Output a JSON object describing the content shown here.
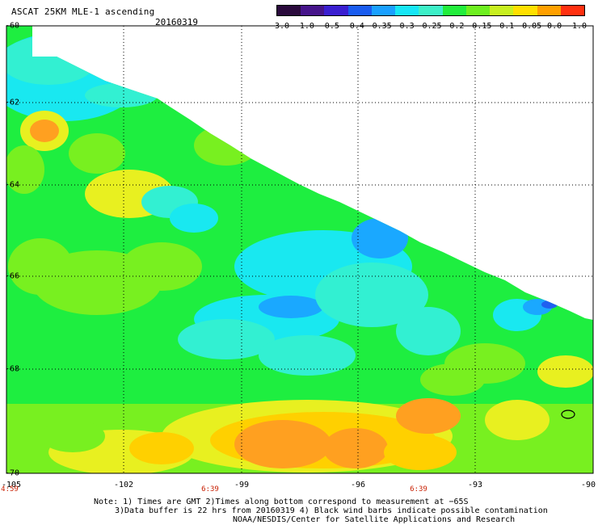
{
  "header": {
    "title": "ASCAT 25KM MLE-1 ascending",
    "date": "20160319"
  },
  "colorbar": {
    "labels": [
      "-3.0",
      "-1.0",
      "-0.5",
      "-0.4",
      "-0.35",
      "-0.3",
      "-0.25",
      "-0.2",
      "-0.15",
      "-0.1",
      "-0.05",
      "0.0",
      "1.0"
    ],
    "colors": [
      "#2a0a3c",
      "#46148a",
      "#3a1fd0",
      "#1a5cf0",
      "#1aa0ff",
      "#17e6f6",
      "#3df0c8",
      "#22ee3c",
      "#6ef020",
      "#c8f020",
      "#ffe000",
      "#ffa000",
      "#ff3010"
    ]
  },
  "map": {
    "y_axis": {
      "labels": [
        "-60",
        "-62",
        "-64",
        "-66",
        "-68",
        "-70"
      ]
    },
    "x_axis": {
      "labels": [
        "-105",
        "-102",
        "-99",
        "-96",
        "-93",
        "-90"
      ]
    },
    "time_labels": [
      "4:59",
      "6:39",
      "6:39"
    ],
    "background": "#ffffff",
    "grid_color": "#000000"
  },
  "notes": {
    "line1": "Note: 1) Times are GMT 2)Times along bottom correspond to measurement at −65S",
    "line2": "3)Data buffer is 22 hrs from 20160319 4) Black wind barbs indicate possible contamination",
    "line3": "NOAA/NESDIS/Center for Satellite Applications and Research"
  }
}
